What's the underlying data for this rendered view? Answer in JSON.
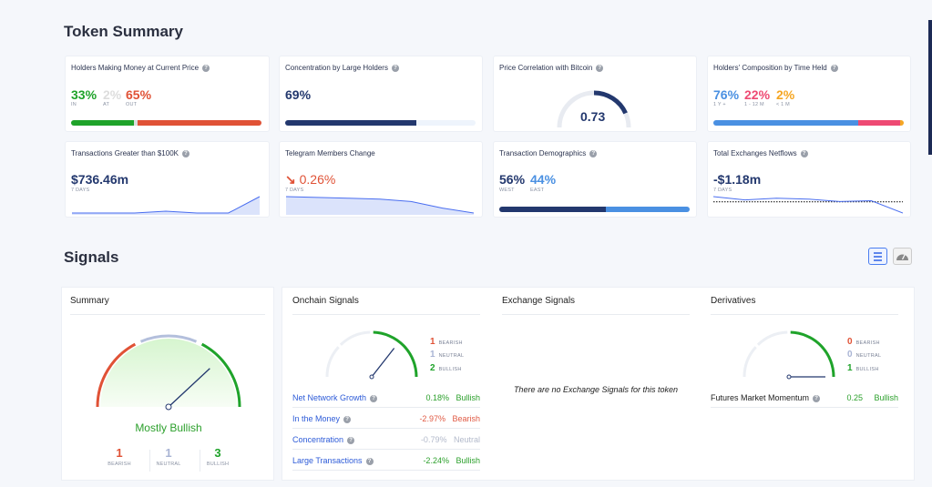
{
  "token_summary": {
    "title": "Token Summary",
    "holders_money": {
      "title": "Holders Making Money at Current Price",
      "in": "33%",
      "in_label": "IN",
      "at": "2%",
      "at_label": "AT",
      "out": "65%",
      "out_label": "OUT",
      "fractions": [
        33,
        2,
        65
      ]
    },
    "concentration": {
      "title": "Concentration by Large Holders",
      "value": "69%",
      "fraction": 69
    },
    "correlation": {
      "title": "Price Correlation with Bitcoin",
      "value": "0.73",
      "numeric": 0.73
    },
    "composition": {
      "title": "Holders' Composition by Time Held",
      "a": "76%",
      "a_label": "1 Y +",
      "b": "22%",
      "b_label": "1 - 12 M",
      "c": "2%",
      "c_label": "< 1 M",
      "fractions": [
        76,
        22,
        2
      ]
    },
    "large_tx": {
      "title": "Transactions Greater than $100K",
      "value": "$736.46m",
      "period": "7 DAYS",
      "series": [
        1,
        1,
        1,
        2,
        1,
        1,
        10
      ]
    },
    "telegram": {
      "title": "Telegram Members Change",
      "value": "0.26%",
      "period": "7 DAYS",
      "series": [
        10,
        9.5,
        9,
        8.5,
        7,
        3,
        0
      ]
    },
    "demographics": {
      "title": "Transaction Demographics",
      "west": "56%",
      "west_label": "WEST",
      "east": "44%",
      "east_label": "EAST",
      "fractions": [
        56,
        44
      ]
    },
    "netflows": {
      "title": "Total Exchanges Netflows",
      "value": "-$1.18m",
      "period": "7 DAYS",
      "series": [
        8,
        6,
        7,
        6.5,
        5,
        5.5,
        -2
      ]
    }
  },
  "signals": {
    "title": "Signals",
    "summary": {
      "title": "Summary",
      "verdict": "Mostly Bullish",
      "bearish": "1",
      "neutral": "1",
      "bullish": "3",
      "bearish_label": "BEARISH",
      "neutral_label": "NEUTRAL",
      "bullish_label": "BULLISH"
    },
    "onchain": {
      "title": "Onchain Signals",
      "bearish": "1",
      "neutral": "1",
      "bullish": "2",
      "rows": [
        {
          "name": "Net Network Growth",
          "value": "0.18%",
          "signal": "Bullish",
          "color": "#2ca02c"
        },
        {
          "name": "In the Money",
          "value": "-2.97%",
          "signal": "Bearish",
          "color": "#e05a44"
        },
        {
          "name": "Concentration",
          "value": "-0.79%",
          "signal": "Neutral",
          "color": "#b3bacb"
        },
        {
          "name": "Large Transactions",
          "value": "-2.24%",
          "signal": "Bullish",
          "color": "#2ca02c"
        }
      ]
    },
    "exchange": {
      "title": "Exchange Signals",
      "empty": "There are no Exchange Signals for this token"
    },
    "derivatives": {
      "title": "Derivatives",
      "bearish": "0",
      "neutral": "0",
      "bullish": "1",
      "rows": [
        {
          "name": "Futures Market Momentum",
          "value": "0.25",
          "signal": "Bullish"
        }
      ]
    },
    "labels": {
      "bearish": "BEARISH",
      "neutral": "NEUTRAL",
      "bullish": "BULLISH"
    }
  },
  "colors": {
    "green": "#1fa32a",
    "red": "#e05236",
    "navy": "#23386e",
    "blue": "#4a90e2",
    "pink": "#ee4a73",
    "orange": "#f5a623"
  }
}
